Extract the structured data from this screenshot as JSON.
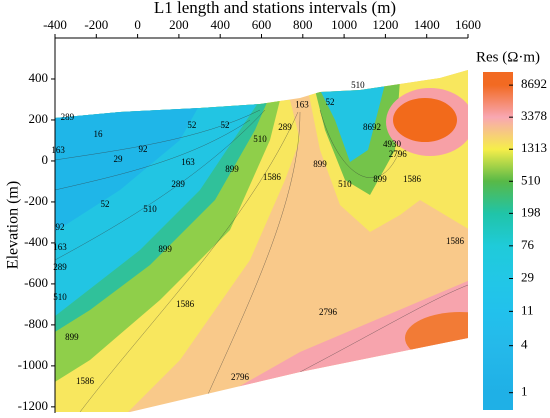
{
  "chart_data": {
    "type": "contour",
    "title": "L1 length and stations intervals (m)",
    "y_label": "Elevation (m)",
    "xlim": [
      -400,
      1600
    ],
    "ylim": [
      -1230,
      600
    ],
    "xticks": [
      -400,
      -200,
      0,
      200,
      400,
      600,
      800,
      1000,
      1200,
      1400,
      1600
    ],
    "yticks": [
      400,
      200,
      0,
      -200,
      -400,
      -600,
      -800,
      -1000,
      -1200
    ],
    "colorbar": {
      "title": "Res (Ω·m)",
      "log": true,
      "lim": [
        0.6,
        12800
      ],
      "ticks": [
        1,
        4,
        11,
        29,
        76,
        198,
        510,
        1313,
        3378,
        8692
      ],
      "colors": [
        "#1fb0e6",
        "#25b9ea",
        "#22c1ec",
        "#22c7e6",
        "#1fcbd9",
        "#20c4a8",
        "#58b947",
        "#f6ee4a",
        "#f8a7b2",
        "#f26a22"
      ]
    },
    "contour_labels": [
      {
        "value": 289,
        "x": -340,
        "y": 210
      },
      {
        "value": 163,
        "x": -385,
        "y": 48
      },
      {
        "value": 16,
        "x": -192,
        "y": 126
      },
      {
        "value": 29,
        "x": -95,
        "y": 4
      },
      {
        "value": 92,
        "x": 26,
        "y": 53
      },
      {
        "value": 163,
        "x": 244,
        "y": -10
      },
      {
        "value": 289,
        "x": 196,
        "y": -118
      },
      {
        "value": 52,
        "x": -158,
        "y": -215
      },
      {
        "value": 92,
        "x": -376,
        "y": -328
      },
      {
        "value": 163,
        "x": -376,
        "y": -425
      },
      {
        "value": 289,
        "x": -376,
        "y": -523
      },
      {
        "value": 510,
        "x": -376,
        "y": -669
      },
      {
        "value": 899,
        "x": -318,
        "y": -864
      },
      {
        "value": 1586,
        "x": -255,
        "y": -1079
      },
      {
        "value": 2796,
        "x": 496,
        "y": -1059
      },
      {
        "value": 2796,
        "x": 922,
        "y": -742
      },
      {
        "value": 1586,
        "x": 230,
        "y": -703
      },
      {
        "value": 899,
        "x": 133,
        "y": -435
      },
      {
        "value": 510,
        "x": 60,
        "y": -240
      },
      {
        "value": 52,
        "x": 263,
        "y": 170
      },
      {
        "value": 52,
        "x": 423,
        "y": 170
      },
      {
        "value": 510,
        "x": 593,
        "y": 102
      },
      {
        "value": 899,
        "x": 457,
        "y": -45
      },
      {
        "value": 1586,
        "x": 650,
        "y": -84
      },
      {
        "value": 899,
        "x": 883,
        "y": -20
      },
      {
        "value": 289,
        "x": 714,
        "y": 160
      },
      {
        "value": 163,
        "x": 796,
        "y": 272
      },
      {
        "value": 52,
        "x": 932,
        "y": 282
      },
      {
        "value": 510,
        "x": 1004,
        "y": -118
      },
      {
        "value": 899,
        "x": 1174,
        "y": -93
      },
      {
        "value": 1586,
        "x": 1329,
        "y": -93
      },
      {
        "value": 2796,
        "x": 1260,
        "y": 29
      },
      {
        "value": 4930,
        "x": 1232,
        "y": 78
      },
      {
        "value": 8692,
        "x": 1135,
        "y": 160
      },
      {
        "value": 1586,
        "x": 1537,
        "y": -396
      },
      {
        "value": 510,
        "x": 1067,
        "y": 365
      }
    ]
  }
}
